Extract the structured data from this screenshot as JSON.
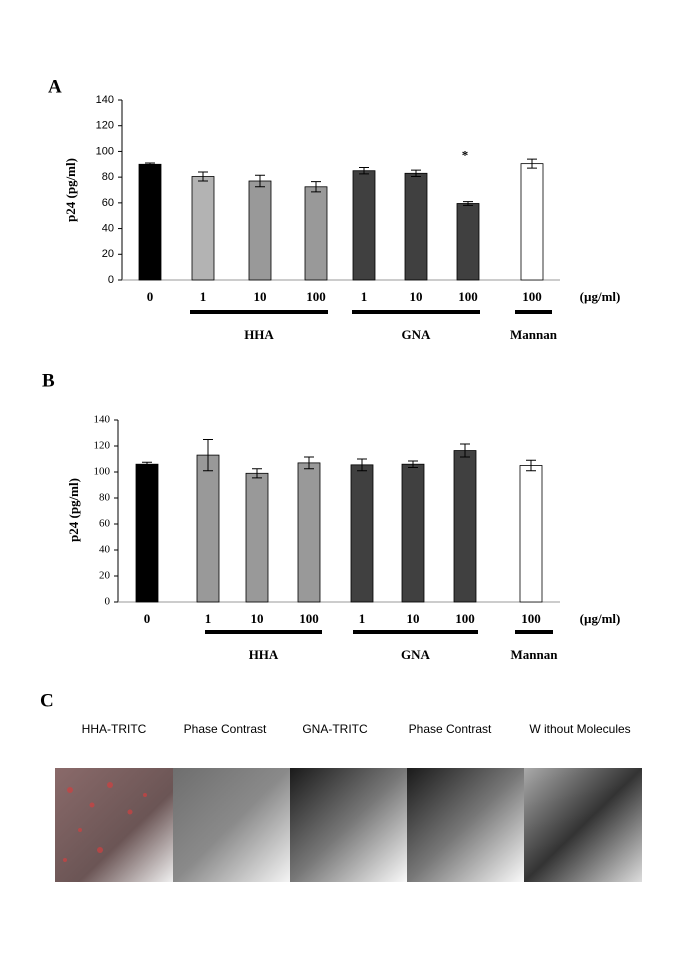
{
  "chart_data": [
    {
      "type": "bar",
      "panel": "A",
      "y_label": "p24 (pg/ml)",
      "unit": "(µg/ml)",
      "annotation": "*",
      "categories": [
        "0",
        "1",
        "10",
        "100",
        "1",
        "10",
        "100",
        "100"
      ],
      "values": [
        90,
        80.5,
        77,
        72.5,
        85,
        83,
        59.5,
        90.5
      ],
      "errors": [
        1,
        3.5,
        4.5,
        4,
        2.5,
        2.5,
        1.5,
        3.5
      ],
      "colors": [
        "#000000",
        "#b3b3b3",
        "#999999",
        "#999999",
        "#404040",
        "#404040",
        "#404040",
        "#ffffff"
      ],
      "groups": [
        "HHA",
        "GNA",
        "Mannan"
      ],
      "ylim": [
        0,
        140
      ],
      "yticks": [
        0,
        20,
        40,
        60,
        80,
        100,
        120,
        140
      ]
    },
    {
      "type": "bar",
      "panel": "B",
      "y_label": "p24 (pg/ml)",
      "unit": "(µg/ml)",
      "categories": [
        "0",
        "1",
        "10",
        "100",
        "1",
        "10",
        "100",
        "100"
      ],
      "values": [
        106,
        113,
        99,
        107,
        105.5,
        106,
        116.5,
        105
      ],
      "errors": [
        1.5,
        12,
        3.5,
        4.5,
        4.5,
        2.5,
        5,
        4
      ],
      "colors": [
        "#000000",
        "#999999",
        "#999999",
        "#999999",
        "#404040",
        "#404040",
        "#404040",
        "#ffffff"
      ],
      "groups": [
        "HHA",
        "GNA",
        "Mannan"
      ],
      "ylim": [
        0,
        140
      ],
      "yticks": [
        0,
        20,
        40,
        60,
        80,
        100,
        120,
        140
      ]
    }
  ],
  "panel_c": {
    "label": "C",
    "captions": [
      "HHA-TRITC",
      "Phase  Contrast",
      "GNA-TRITC",
      "Phase  Contrast",
      "W ithout Molecules"
    ]
  }
}
